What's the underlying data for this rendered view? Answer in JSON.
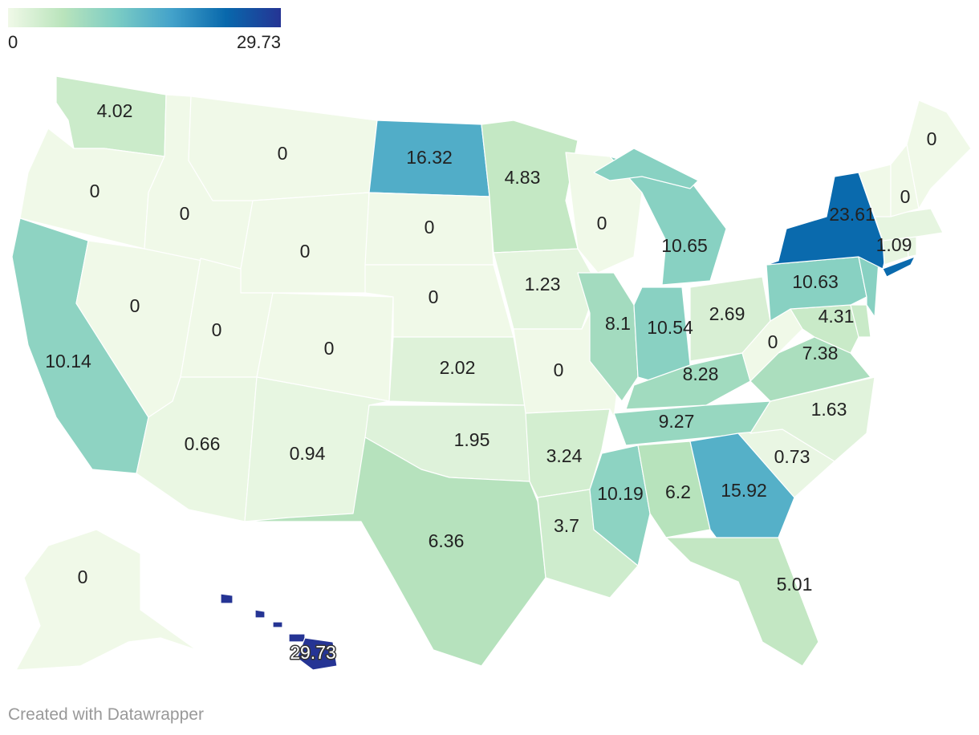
{
  "legend": {
    "min_label": "0",
    "max_label": "29.73",
    "colors": [
      "#f0f9e8",
      "#bae4bc",
      "#7bccc4",
      "#43a2ca",
      "#0868ac",
      "#253494"
    ]
  },
  "credit": "Created with Datawrapper",
  "chart_data": {
    "type": "choropleth",
    "scale": {
      "min": 0,
      "max": 29.73
    },
    "states": [
      {
        "state": "WA",
        "value": 4.02,
        "label": "4.02"
      },
      {
        "state": "OR",
        "value": 0,
        "label": "0"
      },
      {
        "state": "CA",
        "value": 10.14,
        "label": "10.14"
      },
      {
        "state": "NV",
        "value": 0,
        "label": "0"
      },
      {
        "state": "ID",
        "value": 0,
        "label": "0"
      },
      {
        "state": "MT",
        "value": 0,
        "label": "0"
      },
      {
        "state": "WY",
        "value": 0,
        "label": "0"
      },
      {
        "state": "UT",
        "value": 0,
        "label": "0"
      },
      {
        "state": "AZ",
        "value": 0.66,
        "label": "0.66"
      },
      {
        "state": "CO",
        "value": 0,
        "label": "0"
      },
      {
        "state": "NM",
        "value": 0.94,
        "label": "0.94"
      },
      {
        "state": "ND",
        "value": 16.32,
        "label": "16.32"
      },
      {
        "state": "SD",
        "value": 0,
        "label": "0"
      },
      {
        "state": "NE",
        "value": 0,
        "label": "0"
      },
      {
        "state": "KS",
        "value": 2.02,
        "label": "2.02"
      },
      {
        "state": "OK",
        "value": 1.95,
        "label": "1.95"
      },
      {
        "state": "TX",
        "value": 6.36,
        "label": "6.36"
      },
      {
        "state": "MN",
        "value": 4.83,
        "label": "4.83"
      },
      {
        "state": "IA",
        "value": 1.23,
        "label": "1.23"
      },
      {
        "state": "MO",
        "value": 0,
        "label": "0"
      },
      {
        "state": "AR",
        "value": 3.24,
        "label": "3.24"
      },
      {
        "state": "LA",
        "value": 3.7,
        "label": "3.7"
      },
      {
        "state": "WI",
        "value": 0,
        "label": "0"
      },
      {
        "state": "IL",
        "value": 8.1,
        "label": "8.1"
      },
      {
        "state": "MI",
        "value": 10.65,
        "label": "10.65"
      },
      {
        "state": "IN",
        "value": 10.54,
        "label": "10.54"
      },
      {
        "state": "OH",
        "value": 2.69,
        "label": "2.69"
      },
      {
        "state": "KY",
        "value": 8.28,
        "label": "8.28"
      },
      {
        "state": "TN",
        "value": 9.27,
        "label": "9.27"
      },
      {
        "state": "MS",
        "value": 10.19,
        "label": "10.19"
      },
      {
        "state": "AL",
        "value": 6.2,
        "label": "6.2"
      },
      {
        "state": "GA",
        "value": 15.92,
        "label": "15.92"
      },
      {
        "state": "FL",
        "value": 5.01,
        "label": "5.01"
      },
      {
        "state": "SC",
        "value": 0.73,
        "label": "0.73"
      },
      {
        "state": "NC",
        "value": 1.63,
        "label": "1.63"
      },
      {
        "state": "VA",
        "value": 7.38,
        "label": "7.38"
      },
      {
        "state": "WV",
        "value": 0,
        "label": "0"
      },
      {
        "state": "MD",
        "value": 4.31,
        "label": "4.31"
      },
      {
        "state": "DE",
        "value": 4.31,
        "label": ""
      },
      {
        "state": "PA",
        "value": 10.63,
        "label": "10.63"
      },
      {
        "state": "NJ",
        "value": 10.63,
        "label": ""
      },
      {
        "state": "NY",
        "value": 23.61,
        "label": "23.61"
      },
      {
        "state": "CT",
        "value": 1.09,
        "label": ""
      },
      {
        "state": "RI",
        "value": 1.09,
        "label": ""
      },
      {
        "state": "MA",
        "value": 1.09,
        "label": "1.09"
      },
      {
        "state": "VT",
        "value": 0,
        "label": ""
      },
      {
        "state": "NH",
        "value": 0,
        "label": "0"
      },
      {
        "state": "ME",
        "value": 0,
        "label": "0"
      },
      {
        "state": "AK",
        "value": 0,
        "label": "0"
      },
      {
        "state": "HI",
        "value": 29.73,
        "label": "29.73"
      }
    ]
  }
}
